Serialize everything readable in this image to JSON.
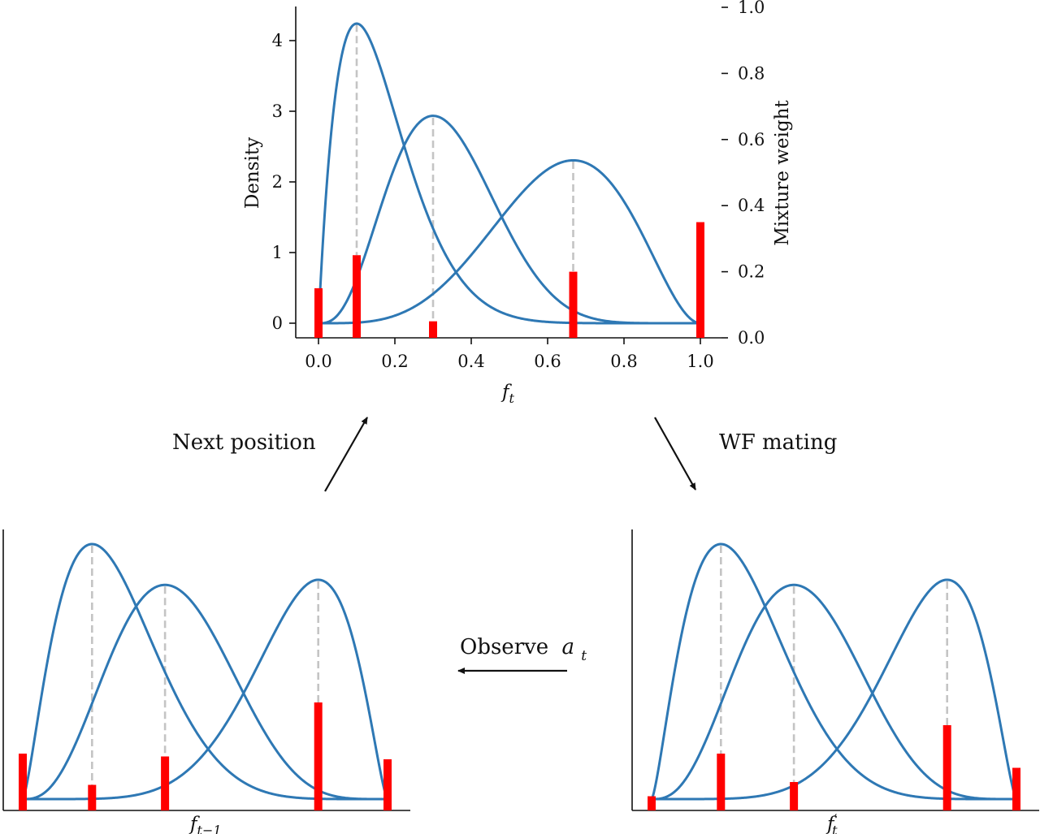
{
  "chart_data": [
    {
      "id": "top",
      "type": "line",
      "xlabel": "f_t",
      "ylabel": "Density",
      "y2label": "Mixture weight",
      "xlim": [
        -0.05,
        1.0
      ],
      "ylim": [
        -0.15,
        4.5
      ],
      "y2lim": [
        0.0,
        1.0
      ],
      "xticks": [
        "0.0",
        "0.2",
        "0.4",
        "0.6",
        "0.8",
        "1.0"
      ],
      "yticks": [
        "0",
        "1",
        "2",
        "3",
        "4"
      ],
      "y2ticks": [
        "0.0",
        "0.2",
        "0.4",
        "0.6",
        "0.8",
        "1.0"
      ],
      "series": [
        {
          "mode": 0.1,
          "peak": 4.25
        },
        {
          "mode": 0.3,
          "peak": 2.93
        },
        {
          "mode": 0.667,
          "peak": 2.31
        }
      ],
      "weights": {
        "x": [
          0.0,
          0.1,
          0.3,
          0.667,
          1.0
        ],
        "values": [
          0.15,
          0.25,
          0.05,
          0.2,
          0.35
        ]
      }
    },
    {
      "id": "bottom-left",
      "type": "line",
      "xlabel": "f_{t-1}",
      "series": [
        {
          "mode": 0.19,
          "peak": 1.0
        },
        {
          "mode": 0.39,
          "peak": 0.84
        },
        {
          "mode": 0.81,
          "peak": 0.86
        }
      ],
      "weights": {
        "x": [
          0.0,
          0.19,
          0.39,
          0.81,
          1.0
        ],
        "values": [
          0.2,
          0.09,
          0.19,
          0.38,
          0.18
        ]
      }
    },
    {
      "id": "bottom-right",
      "type": "line",
      "xlabel": "f_t'",
      "series": [
        {
          "mode": 0.19,
          "peak": 1.0
        },
        {
          "mode": 0.39,
          "peak": 0.84
        },
        {
          "mode": 0.81,
          "peak": 0.86
        }
      ],
      "weights": {
        "x": [
          0.0,
          0.19,
          0.39,
          0.81,
          1.0
        ],
        "values": [
          0.05,
          0.2,
          0.1,
          0.3,
          0.15
        ]
      }
    }
  ],
  "arrows": {
    "next_position": "Next position",
    "wf_mating": "WF mating",
    "observe_prefix": "Observe",
    "observe_var": "a",
    "observe_sub": "t"
  },
  "colors": {
    "curve": "#2e78b4",
    "weight_bar": "#ff0000",
    "guide": "#c4c4c4"
  }
}
